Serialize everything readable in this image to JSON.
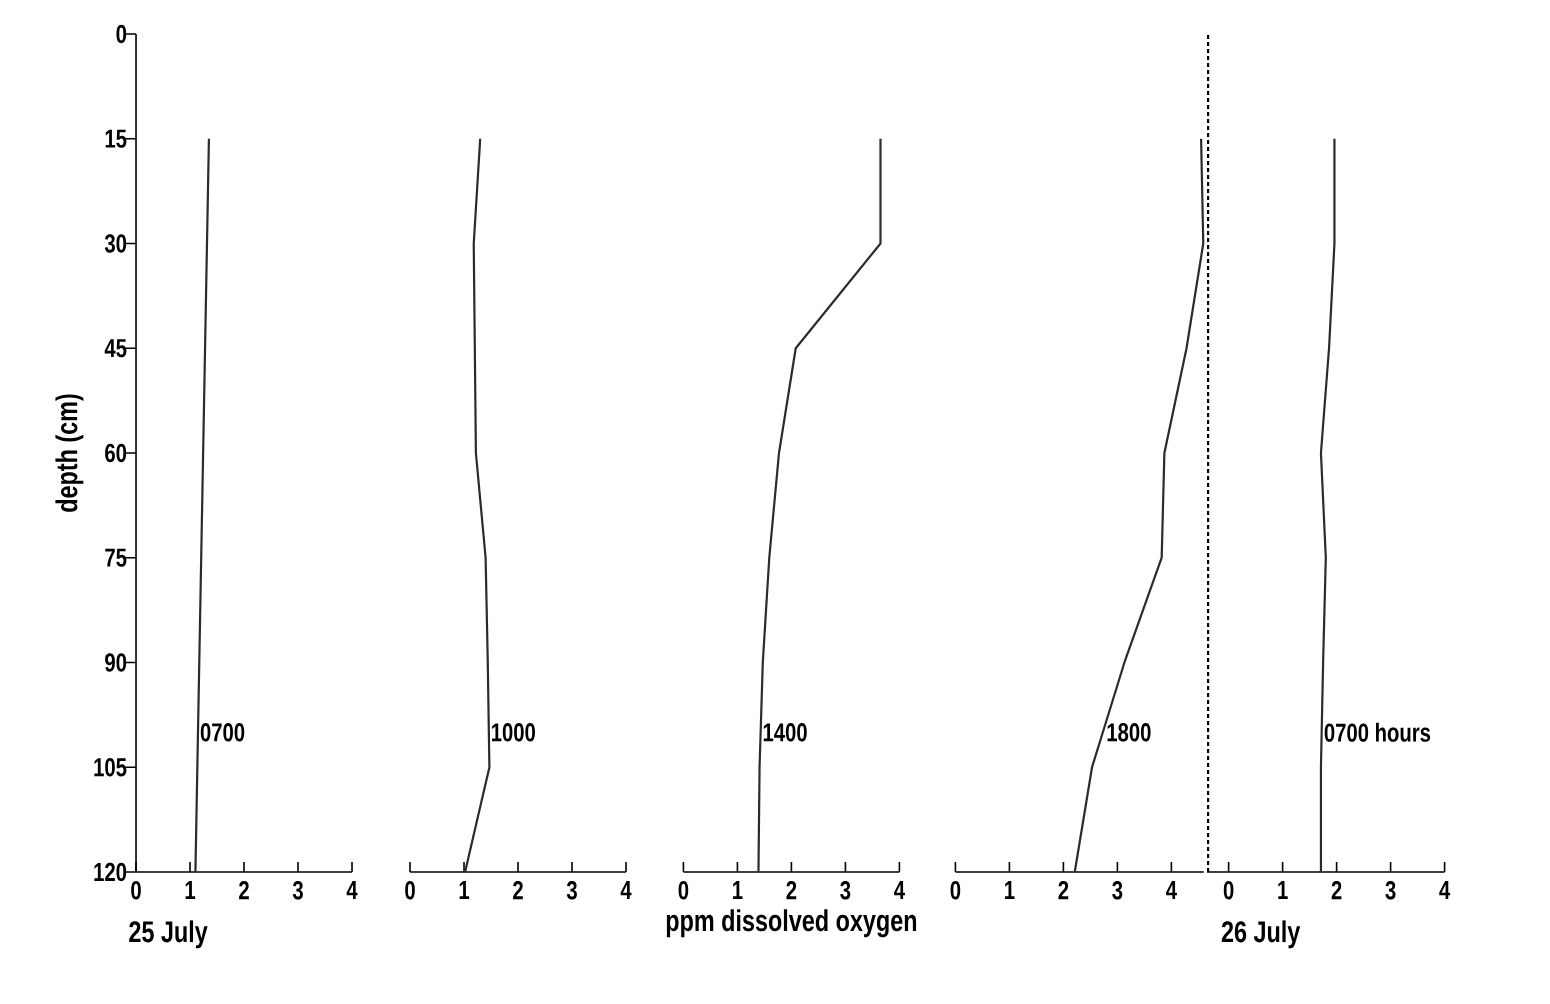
{
  "chart_data": [
    {
      "type": "line",
      "ylabel": "depth (cm)",
      "xlim": [
        0,
        4
      ],
      "ylim": [
        120,
        0
      ],
      "xticks": [
        0,
        1,
        2,
        3,
        4
      ],
      "yticks": [
        0,
        15,
        30,
        45,
        60,
        75,
        90,
        105,
        120
      ],
      "marker": "none",
      "series": [
        {
          "color": "#2b2b2b",
          "x": [
            1.35,
            1.1
          ],
          "values": [
            15,
            120
          ]
        }
      ],
      "annotations": [
        {
          "text": "0700",
          "x": 1.14,
          "y": 100
        },
        "25 July"
      ]
    },
    {
      "type": "line",
      "xlim": [
        0,
        4
      ],
      "ylim": [
        120,
        0
      ],
      "xticks": [
        0,
        1,
        2,
        3,
        4
      ],
      "tick_labels": "x",
      "marker": "none",
      "series": [
        {
          "color": "#2b2b2b",
          "x": [
            1.3,
            1.18,
            1.2,
            1.22,
            1.4,
            1.44,
            1.47,
            1.02
          ],
          "values": [
            15,
            30,
            45,
            60,
            75,
            90,
            105,
            120
          ]
        }
      ],
      "annotations": [
        {
          "text": "1000",
          "x": 1.45,
          "y": 100
        }
      ]
    },
    {
      "type": "line",
      "xlabel": "ppm dissolved oxygen",
      "xlim": [
        0,
        4
      ],
      "ylim": [
        120,
        0
      ],
      "xticks": [
        0,
        1,
        2,
        3,
        4
      ],
      "tick_labels": "x",
      "marker": "none",
      "series": [
        {
          "color": "#2b2b2b",
          "x": [
            3.65,
            3.65,
            2.08,
            1.77,
            1.59,
            1.47,
            1.41,
            1.39
          ],
          "values": [
            15,
            30,
            45,
            60,
            75,
            90,
            105,
            120
          ]
        }
      ],
      "annotations": [
        {
          "text": "1400",
          "x": 1.42,
          "y": 100
        }
      ]
    },
    {
      "type": "line",
      "xlim": [
        0,
        4.6
      ],
      "ylim": [
        120,
        0
      ],
      "xticks": [
        0,
        1,
        2,
        3,
        4
      ],
      "tick_labels": "x",
      "marker": "none",
      "series": [
        {
          "color": "#2b2b2b",
          "x": [
            4.55,
            4.59,
            4.28,
            3.87,
            3.82,
            3.13,
            2.53,
            2.21
          ],
          "values": [
            15,
            30,
            45,
            60,
            75,
            90,
            105,
            120
          ]
        }
      ],
      "annotations": [
        {
          "text": "1800",
          "x": 2.75,
          "y": 100
        }
      ]
    },
    {
      "type": "line",
      "xlim": [
        -0.4,
        4
      ],
      "ylim": [
        120,
        0
      ],
      "xticks": [
        0,
        1,
        2,
        3,
        4
      ],
      "tick_labels": "x",
      "marker": "none",
      "series": [
        {
          "color": "#2b2b2b",
          "x": [
            1.96,
            1.96,
            1.86,
            1.71,
            1.8,
            1.75,
            1.71,
            1.71
          ],
          "values": [
            15,
            30,
            45,
            60,
            75,
            90,
            105,
            120
          ]
        }
      ],
      "ref_lines": [
        {
          "axis": "x",
          "value": -0.38,
          "line_style": "dashed"
        }
      ],
      "annotations": [
        {
          "text": "0700 hours",
          "x": 1.72,
          "y": 100
        },
        "26 July"
      ]
    }
  ]
}
